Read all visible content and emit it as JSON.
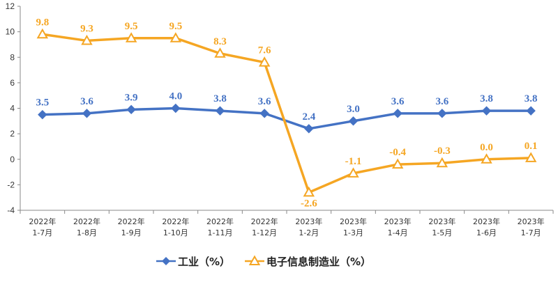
{
  "chart_data": {
    "type": "line",
    "categories": [
      [
        "2022年",
        "1-7月"
      ],
      [
        "2022年",
        "1-8月"
      ],
      [
        "2022年",
        "1-9月"
      ],
      [
        "2022年",
        "1-10月"
      ],
      [
        "2022年",
        "1-11月"
      ],
      [
        "2022年",
        "1-12月"
      ],
      [
        "2023年",
        "1-2月"
      ],
      [
        "2023年",
        "1-3月"
      ],
      [
        "2023年",
        "1-4月"
      ],
      [
        "2023年",
        "1-5月"
      ],
      [
        "2023年",
        "1-6月"
      ],
      [
        "2023年",
        "1-7月"
      ]
    ],
    "series": [
      {
        "name": "工业（%）",
        "color": "#4472C4",
        "marker": "diamond",
        "values": [
          3.5,
          3.6,
          3.9,
          4.0,
          3.8,
          3.6,
          2.4,
          3.0,
          3.6,
          3.6,
          3.8,
          3.8
        ],
        "labels": [
          "3.5",
          "3.6",
          "3.9",
          "4.0",
          "3.8",
          "3.6",
          "2.4",
          "3.0",
          "3.6",
          "3.6",
          "3.8",
          "3.8"
        ]
      },
      {
        "name": "电子信息制造业（%）",
        "color": "#F5A623",
        "marker": "triangle",
        "values": [
          9.8,
          9.3,
          9.5,
          9.5,
          8.3,
          7.6,
          -2.6,
          -1.1,
          -0.4,
          -0.3,
          0.0,
          0.1
        ],
        "labels": [
          "9.8",
          "9.3",
          "9.5",
          "9.5",
          "8.3",
          "7.6",
          "-2.6",
          "-1.1",
          "-0.4",
          "-0.3",
          "0.0",
          "0.1"
        ]
      }
    ],
    "ylim": [
      -4,
      12
    ],
    "yticks": [
      -4,
      -2,
      0,
      2,
      4,
      6,
      8,
      10,
      12
    ],
    "legend_position": "bottom",
    "grid": false
  }
}
